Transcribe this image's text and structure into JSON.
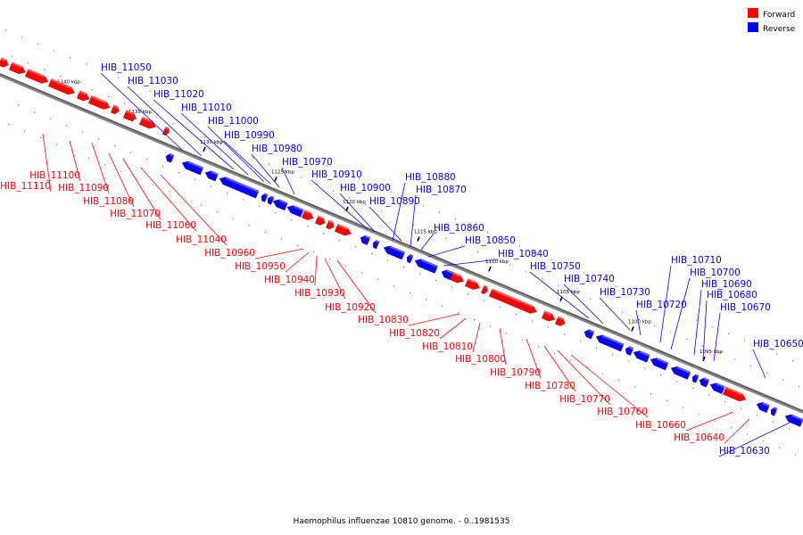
{
  "legend": {
    "forward": {
      "label": "Forward",
      "color": "#ff0000"
    },
    "reverse": {
      "label": "Reverse",
      "color": "#0000ff"
    }
  },
  "caption": "Haemophilus influenzae 10810 genome. - 0..1981535",
  "axis_ticks": [
    "1140 kbp",
    "1135 kbp",
    "1130 kbp",
    "1125 kbp",
    "1120 kbp",
    "1115 kbp",
    "1110 kbp",
    "1105 kbp",
    "1100 kbp",
    "1095 kbp"
  ],
  "forward_genes": [
    "HIB_11100",
    "HIB_11110",
    "HIB_11090",
    "HIB_11080",
    "HIB_11070",
    "HIB_11060",
    "HIB_11040",
    "HIB_10960",
    "HIB_10950",
    "HIB_10940",
    "HIB_10930",
    "HIB_10920",
    "HIB_10830",
    "HIB_10820",
    "HIB_10810",
    "HIB_10800",
    "HIB_10790",
    "HIB_10780",
    "HIB_10770",
    "HIB_10760",
    "HIB_10660",
    "HIB_10640"
  ],
  "reverse_genes": [
    "HIB_11050",
    "HIB_11030",
    "HIB_11020",
    "HIB_11010",
    "HIB_11000",
    "HIB_10990",
    "HIB_10980",
    "HIB_10970",
    "HIB_10910",
    "HIB_10900",
    "HIB_10890",
    "HIB_10880",
    "HIB_10870",
    "HIB_10860",
    "HIB_10850",
    "HIB_10840",
    "HIB_10750",
    "HIB_10740",
    "HIB_10730",
    "HIB_10720",
    "HIB_10710",
    "HIB_10700",
    "HIB_10690",
    "HIB_10680",
    "HIB_10670",
    "HIB_10650",
    "HIB_10630"
  ]
}
